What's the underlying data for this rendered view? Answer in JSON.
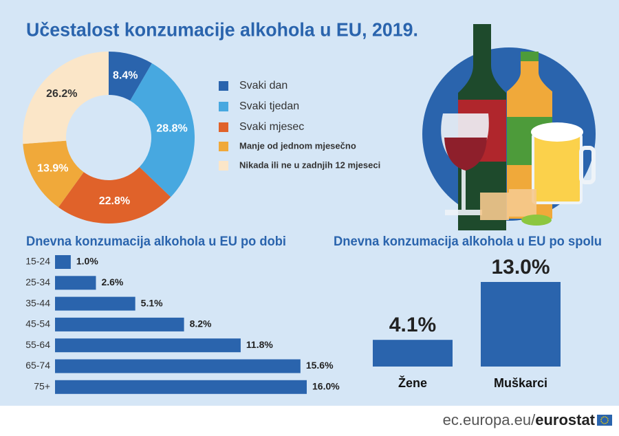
{
  "chart_data": [
    {
      "type": "pie",
      "title": "Učestalost konzumacije alkohola u EU, 2019.",
      "categories": [
        "Svaki dan",
        "Svaki tjedan",
        "Svaki mjesec",
        "Manje od jednom mjesečno",
        "Nikada ili ne u zadnjih 12 mjeseci"
      ],
      "values": [
        8.4,
        28.8,
        22.8,
        13.9,
        26.2
      ],
      "value_labels": [
        "8.4%",
        "28.8%",
        "22.8%",
        "13.9%",
        "26.2%"
      ],
      "colors": [
        "#2a64ad",
        "#47a8e0",
        "#e0622a",
        "#f0a93a",
        "#fbe6c8"
      ]
    },
    {
      "type": "bar",
      "orientation": "horizontal",
      "title": "Dnevna konzumacija alkohola u EU po dobi",
      "categories": [
        "15-24",
        "25-34",
        "35-44",
        "45-54",
        "55-64",
        "65-74",
        "75+"
      ],
      "values": [
        1.0,
        2.6,
        5.1,
        8.2,
        11.8,
        15.6,
        16.0
      ],
      "value_labels": [
        "1.0%",
        "2.6%",
        "5.1%",
        "8.2%",
        "11.8%",
        "15.6%",
        "16.0%"
      ],
      "color": "#2a64ad"
    },
    {
      "type": "bar",
      "orientation": "vertical",
      "title": "Dnevna konzumacija alkohola u EU po spolu",
      "categories": [
        "Žene",
        "Muškarci"
      ],
      "values": [
        4.1,
        13.0
      ],
      "value_labels": [
        "4.1%",
        "13.0%"
      ],
      "color": "#2a64ad"
    }
  ],
  "footer": {
    "site": "ec.europa.eu/",
    "brand": "eurostat"
  }
}
